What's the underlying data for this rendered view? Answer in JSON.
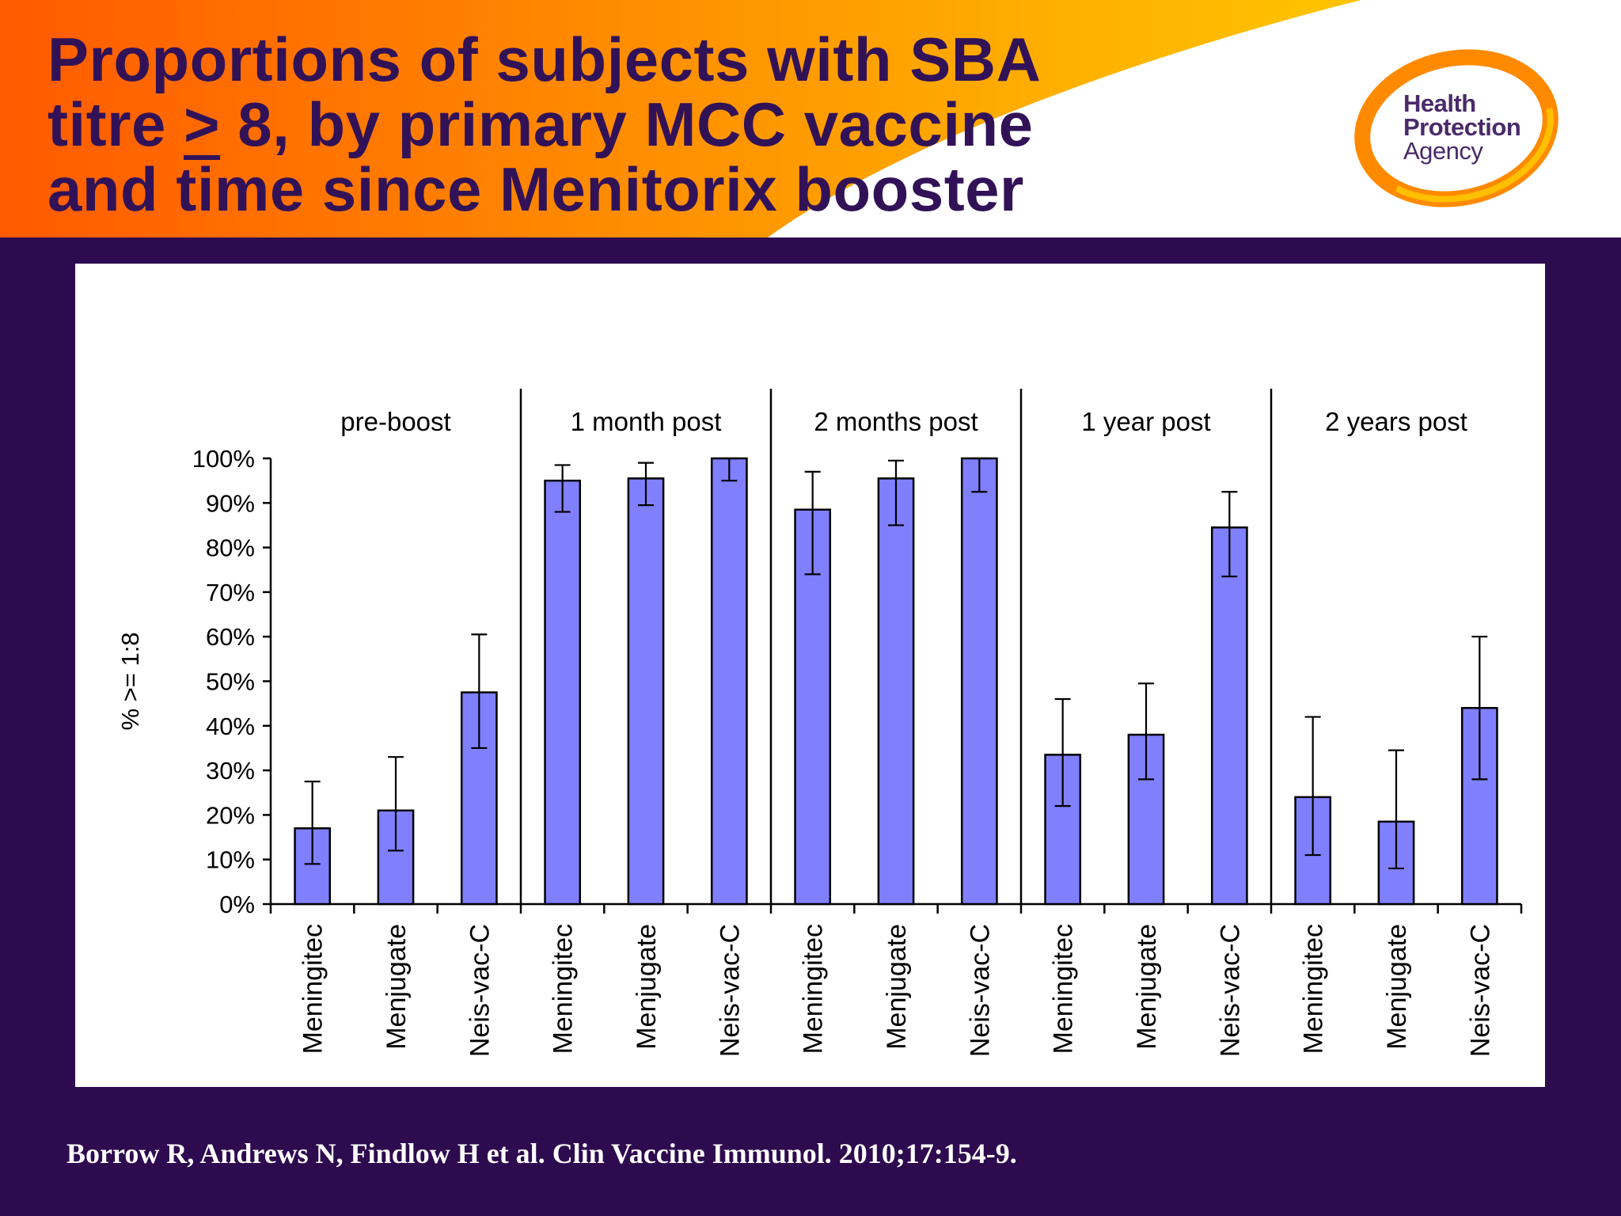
{
  "slide": {
    "title_line1": "Proportions of subjects with SBA",
    "title_line2_pre": "titre ",
    "title_line2_symbol": ">",
    "title_line2_post": " 8, by primary MCC vaccine",
    "title_line3": "and time since Menitorix booster",
    "logo_line1": "Health",
    "logo_line2": "Protection",
    "logo_line3": "Agency",
    "citation": "Borrow R, Andrews N, Findlow H et al. Clin Vaccine Immunol. 2010;17:154-9."
  },
  "colors": {
    "bar_fill": "#8080ff",
    "bar_stroke": "#000000",
    "title_text": "#321257",
    "background": "#2e0a4f"
  },
  "chart_data": {
    "type": "bar",
    "title": "",
    "ylabel": "% >= 1:8",
    "xlabel": "",
    "ylim": [
      0,
      100
    ],
    "yticks": [
      "0%",
      "10%",
      "20%",
      "30%",
      "40%",
      "50%",
      "60%",
      "70%",
      "80%",
      "90%",
      "100%"
    ],
    "categories": [
      "Meningitec",
      "Menjugate",
      "Neis-vac-C"
    ],
    "groups": [
      {
        "label": "pre-boost",
        "values": [
          17,
          21,
          47.5
        ],
        "lower": [
          9,
          12,
          35
        ],
        "upper": [
          27.5,
          33,
          60.5
        ]
      },
      {
        "label": "1 month post",
        "values": [
          95,
          95.5,
          100
        ],
        "lower": [
          88,
          89.5,
          95
        ],
        "upper": [
          98.5,
          99,
          100
        ]
      },
      {
        "label": "2 months post",
        "values": [
          88.5,
          95.5,
          100
        ],
        "lower": [
          74,
          85,
          92.5
        ],
        "upper": [
          97,
          99.5,
          100
        ]
      },
      {
        "label": "1 year post",
        "values": [
          33.5,
          38,
          84.5
        ],
        "lower": [
          22,
          28,
          73.5
        ],
        "upper": [
          46,
          49.5,
          92.5
        ]
      },
      {
        "label": "2 years post",
        "values": [
          24,
          18.5,
          44
        ],
        "lower": [
          11,
          8,
          28
        ],
        "upper": [
          42,
          34.5,
          60
        ]
      }
    ]
  }
}
